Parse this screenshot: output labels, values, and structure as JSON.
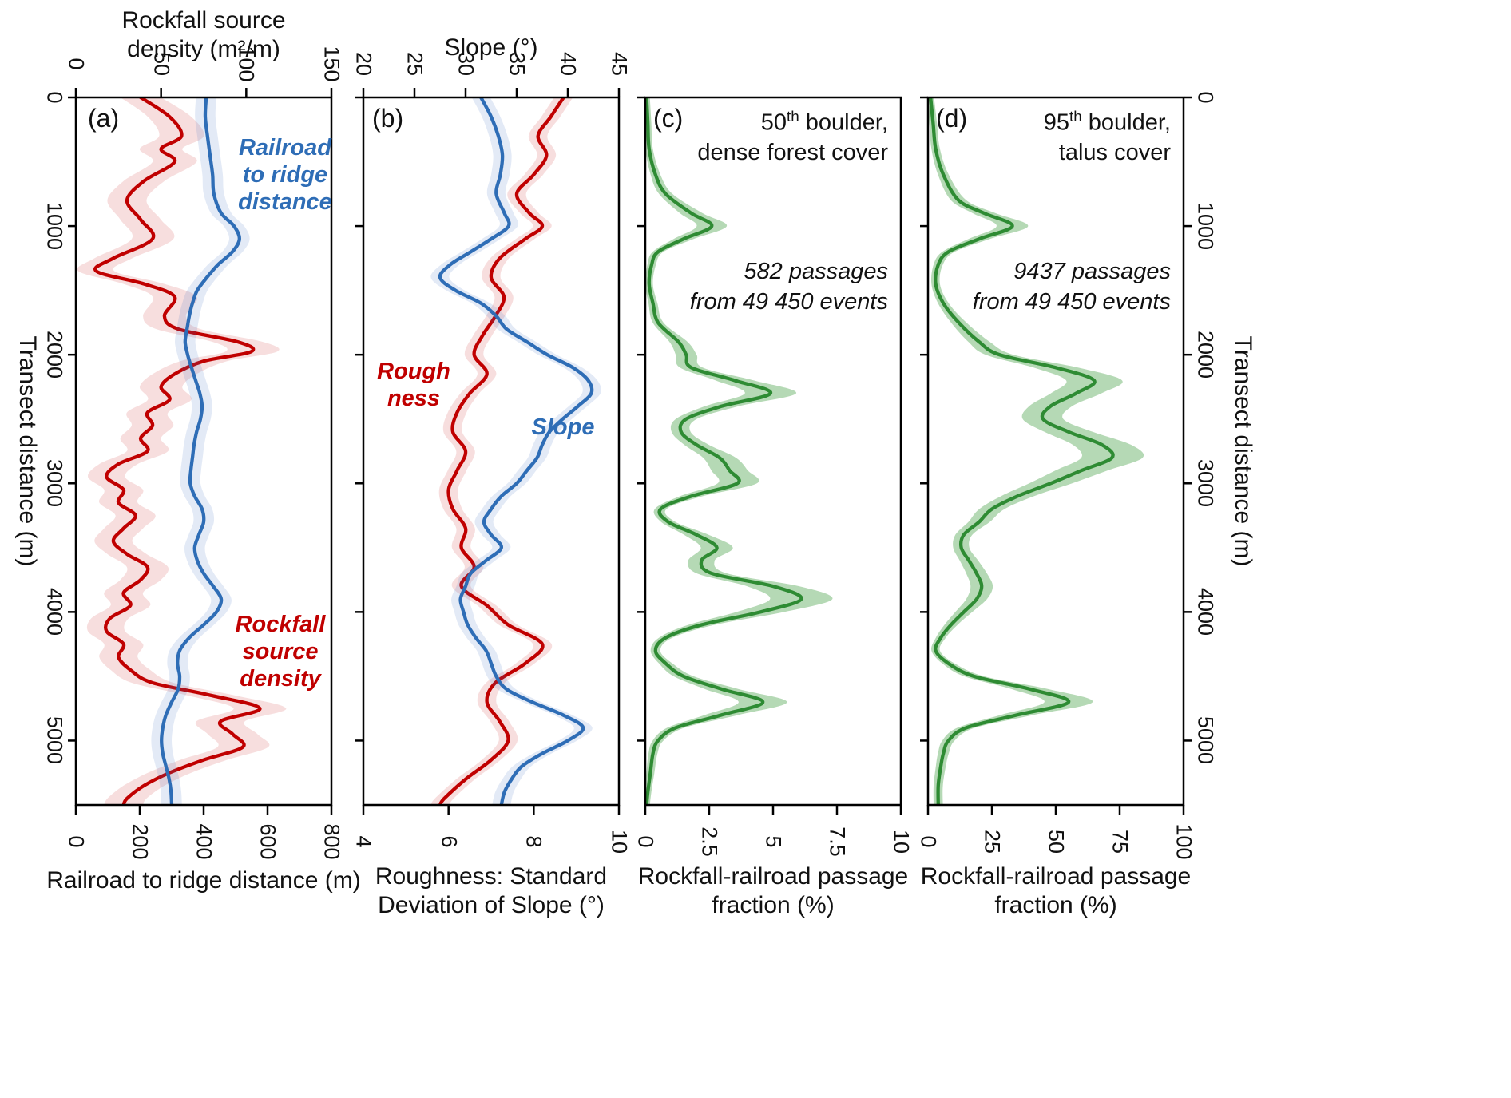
{
  "figure": {
    "transect_range": [
      0,
      5500
    ],
    "transect_ticks": [
      0,
      1000,
      2000,
      3000,
      4000,
      5000
    ]
  },
  "labels": {
    "left_axis_title": "Transect distance (m)",
    "right_axis_title": "Transect distance (m)",
    "panel_a": {
      "letter": "(a)",
      "top_title": "Rockfall source density (m²/m)",
      "bottom_title": "Railroad to ridge distance (m)",
      "annotation_blue": "Railroad to ridge distance",
      "annotation_red": "Rockfall source density"
    },
    "panel_b": {
      "letter": "(b)",
      "top_title": "Slope (°)",
      "bottom_title": "Roughness: Standard Deviation of Slope (°)",
      "annotation_red": "Rough ness",
      "annotation_blue": "Slope"
    },
    "panel_c": {
      "letter": "(c)",
      "header_num": "50",
      "header_sup": "th",
      "header_rest": " boulder,",
      "header_line2": "dense forest cover",
      "passages_line1": "582 passages",
      "passages_line2": "from 49 450 events",
      "bottom_title": "Rockfall-railroad passage fraction (%)"
    },
    "panel_d": {
      "letter": "(d)",
      "header_num": "95",
      "header_sup": "th",
      "header_rest": " boulder,",
      "header_line2": "talus cover",
      "passages_line1": "9437 passages",
      "passages_line2": "from 49 450 events",
      "bottom_title": "Rockfall-railroad passage fraction (%)"
    }
  },
  "chart_data": [
    {
      "panel": "a",
      "type": "line",
      "orientation": "vertical-transect",
      "y_axis": {
        "label": "Transect distance (m)",
        "ticks": [
          0,
          1000,
          2000,
          3000,
          4000,
          5000
        ],
        "range": [
          0,
          5500
        ]
      },
      "top_axis": {
        "label": "Rockfall source density (m²/m)",
        "ticks": [
          0,
          50,
          100,
          150
        ],
        "range": [
          0,
          150
        ]
      },
      "bottom_axis": {
        "label": "Railroad to ridge distance (m)",
        "ticks": [
          0,
          200,
          400,
          600,
          800
        ],
        "range": [
          0,
          800
        ]
      },
      "series": [
        {
          "name": "rockfall-source-density",
          "axis": "top",
          "color": "#c00000",
          "band_color": "rgba(192,0,0,0.13)",
          "band_abs": 10,
          "band_rel": 0.05,
          "t": [
            0,
            150,
            300,
            400,
            500,
            650,
            800,
            950,
            1100,
            1250,
            1350,
            1450,
            1550,
            1700,
            1800,
            1900,
            1975,
            2050,
            2150,
            2250,
            2350,
            2450,
            2550,
            2650,
            2750,
            2850,
            2950,
            3050,
            3150,
            3250,
            3350,
            3450,
            3550,
            3650,
            3750,
            3850,
            3950,
            4050,
            4150,
            4250,
            4350,
            4450,
            4550,
            4650,
            4750,
            4850,
            4950,
            5050,
            5150,
            5250,
            5350,
            5450,
            5500
          ],
          "v": [
            38,
            55,
            62,
            50,
            58,
            40,
            30,
            38,
            45,
            22,
            12,
            40,
            58,
            52,
            60,
            95,
            103,
            75,
            58,
            50,
            55,
            42,
            45,
            38,
            42,
            25,
            18,
            28,
            25,
            35,
            28,
            22,
            30,
            42,
            38,
            28,
            32,
            20,
            18,
            28,
            25,
            32,
            45,
            80,
            108,
            85,
            92,
            98,
            75,
            55,
            40,
            30,
            28
          ]
        },
        {
          "name": "railroad-to-ridge-distance",
          "axis": "bottom",
          "color": "#2e6db6",
          "band_color": "rgba(68,114,196,0.15)",
          "band_abs": 32,
          "band_rel": 0,
          "t": [
            0,
            150,
            300,
            450,
            600,
            750,
            900,
            1000,
            1100,
            1200,
            1300,
            1400,
            1500,
            1600,
            1700,
            1800,
            1900,
            2000,
            2100,
            2200,
            2300,
            2400,
            2500,
            2600,
            2700,
            2800,
            2900,
            3000,
            3100,
            3200,
            3300,
            3400,
            3500,
            3600,
            3700,
            3800,
            3900,
            4000,
            4100,
            4200,
            4300,
            4400,
            4500,
            4600,
            4700,
            4800,
            4900,
            5000,
            5100,
            5200,
            5300,
            5400,
            5500
          ],
          "v": [
            408,
            405,
            412,
            420,
            428,
            432,
            455,
            495,
            512,
            490,
            445,
            410,
            380,
            365,
            355,
            348,
            342,
            350,
            362,
            375,
            388,
            395,
            390,
            378,
            370,
            365,
            360,
            358,
            372,
            395,
            400,
            385,
            372,
            380,
            400,
            430,
            455,
            440,
            400,
            355,
            325,
            318,
            325,
            320,
            300,
            282,
            272,
            268,
            272,
            282,
            292,
            298,
            300
          ]
        }
      ]
    },
    {
      "panel": "b",
      "type": "line",
      "orientation": "vertical-transect",
      "y_axis": {
        "label": "Transect distance (m)",
        "ticks": [
          0,
          1000,
          2000,
          3000,
          4000,
          5000
        ],
        "range": [
          0,
          5500
        ]
      },
      "top_axis": {
        "label": "Slope (°)",
        "ticks": [
          20,
          25,
          30,
          35,
          40,
          45
        ],
        "range": [
          20,
          45
        ]
      },
      "bottom_axis": {
        "label": "Roughness: Standard Deviation of Slope (°)",
        "ticks": [
          4,
          6,
          8,
          10
        ],
        "range": [
          4,
          10
        ]
      },
      "series": [
        {
          "name": "roughness",
          "axis": "bottom",
          "color": "#c00000",
          "band_color": "rgba(192,0,0,0.13)",
          "band_abs": 0.22,
          "band_rel": 0,
          "t": [
            0,
            150,
            300,
            450,
            600,
            750,
            900,
            1000,
            1100,
            1250,
            1400,
            1550,
            1700,
            1850,
            2000,
            2150,
            2300,
            2450,
            2600,
            2750,
            2900,
            3050,
            3200,
            3350,
            3500,
            3650,
            3800,
            3950,
            4100,
            4250,
            4400,
            4550,
            4700,
            4850,
            5000,
            5150,
            5300,
            5450,
            5500
          ],
          "v": [
            8.7,
            8.4,
            8.1,
            8.3,
            8.0,
            7.6,
            7.9,
            8.2,
            7.8,
            7.2,
            7.0,
            7.3,
            7.1,
            6.8,
            6.6,
            6.9,
            6.5,
            6.2,
            6.1,
            6.4,
            6.2,
            6.0,
            6.1,
            6.4,
            6.3,
            6.6,
            6.3,
            6.9,
            7.4,
            8.2,
            7.8,
            7.1,
            6.9,
            7.2,
            7.4,
            7.0,
            6.4,
            5.9,
            5.8
          ]
        },
        {
          "name": "slope",
          "axis": "top",
          "color": "#2e6db6",
          "band_color": "rgba(68,114,196,0.15)",
          "band_abs": 0.9,
          "band_rel": 0,
          "t": [
            0,
            150,
            300,
            450,
            600,
            750,
            900,
            1000,
            1100,
            1200,
            1300,
            1400,
            1500,
            1600,
            1700,
            1800,
            1900,
            2000,
            2100,
            2200,
            2300,
            2400,
            2500,
            2600,
            2700,
            2800,
            2900,
            3000,
            3100,
            3200,
            3300,
            3400,
            3500,
            3600,
            3700,
            3800,
            3900,
            4000,
            4100,
            4200,
            4300,
            4400,
            4500,
            4600,
            4700,
            4800,
            4900,
            5000,
            5100,
            5200,
            5300,
            5400,
            5500
          ],
          "v": [
            31.5,
            32.5,
            33.2,
            33.6,
            33.4,
            33.0,
            33.8,
            34.2,
            32.5,
            30.5,
            28.5,
            27.5,
            29.0,
            31.5,
            33.0,
            34.0,
            36.0,
            38.0,
            40.5,
            42.0,
            42.3,
            41.0,
            39.5,
            38.2,
            37.5,
            37.0,
            36.0,
            35.0,
            33.5,
            32.5,
            31.8,
            32.5,
            33.5,
            32.0,
            30.5,
            30.0,
            29.5,
            29.8,
            30.2,
            31.0,
            32.0,
            32.5,
            33.0,
            34.0,
            36.5,
            39.5,
            41.5,
            40.0,
            37.5,
            35.5,
            34.5,
            33.8,
            33.5
          ]
        }
      ]
    },
    {
      "panel": "c",
      "type": "line",
      "orientation": "vertical-transect",
      "subtitle": "50th boulder, dense forest cover",
      "annotation": "582 passages from 49 450 events",
      "y_axis": {
        "label": "Transect distance (m)",
        "ticks": [
          0,
          1000,
          2000,
          3000,
          4000,
          5000
        ],
        "range": [
          0,
          5500
        ]
      },
      "bottom_axis": {
        "label": "Rockfall-railroad passage fraction (%)",
        "ticks": [
          0,
          2.5,
          5,
          7.5,
          10
        ],
        "range": [
          0,
          10
        ]
      },
      "series": [
        {
          "name": "passage-fraction-50th",
          "axis": "bottom",
          "color": "#2e8b33",
          "band_color": "rgba(70,160,70,0.4)",
          "band_abs": 0.12,
          "band_rel": 0.18,
          "t": [
            0,
            200,
            400,
            600,
            750,
            900,
            1000,
            1100,
            1200,
            1300,
            1450,
            1600,
            1750,
            1900,
            2000,
            2100,
            2200,
            2300,
            2400,
            2500,
            2600,
            2700,
            2800,
            2900,
            3000,
            3100,
            3200,
            3300,
            3400,
            3500,
            3600,
            3700,
            3800,
            3900,
            4000,
            4100,
            4200,
            4300,
            4400,
            4500,
            4600,
            4700,
            4800,
            4900,
            5000,
            5100,
            5250,
            5400,
            5500
          ],
          "v": [
            0.05,
            0.1,
            0.15,
            0.4,
            0.8,
            1.8,
            2.6,
            1.5,
            0.5,
            0.25,
            0.15,
            0.3,
            0.5,
            1.3,
            1.6,
            1.8,
            3.5,
            4.9,
            3.0,
            1.6,
            1.4,
            2.0,
            2.9,
            3.3,
            3.6,
            1.8,
            0.6,
            0.9,
            2.0,
            2.8,
            2.2,
            2.6,
            5.0,
            6.1,
            4.5,
            2.2,
            0.8,
            0.4,
            0.8,
            1.5,
            3.0,
            4.6,
            3.0,
            1.2,
            0.5,
            0.3,
            0.2,
            0.1,
            0.05
          ]
        }
      ]
    },
    {
      "panel": "d",
      "type": "line",
      "orientation": "vertical-transect",
      "subtitle": "95th boulder, talus cover",
      "annotation": "9437 passages from 49 450 events",
      "y_axis": {
        "label": "Transect distance (m)",
        "ticks": [
          0,
          1000,
          2000,
          3000,
          4000,
          5000
        ],
        "range": [
          0,
          5500
        ]
      },
      "bottom_axis": {
        "label": "Rockfall-railroad passage fraction (%)",
        "ticks": [
          0,
          25,
          50,
          75,
          100
        ],
        "range": [
          0,
          100
        ]
      },
      "series": [
        {
          "name": "passage-fraction-95th",
          "axis": "bottom",
          "color": "#2e8b33",
          "band_color": "rgba(70,160,70,0.4)",
          "band_abs": 1.2,
          "band_rel": 0.15,
          "t": [
            0,
            200,
            400,
            600,
            800,
            900,
            1000,
            1100,
            1200,
            1300,
            1450,
            1600,
            1750,
            1900,
            2000,
            2100,
            2200,
            2300,
            2400,
            2500,
            2600,
            2700,
            2800,
            2900,
            3000,
            3100,
            3200,
            3300,
            3400,
            3500,
            3600,
            3700,
            3800,
            3900,
            4000,
            4100,
            4200,
            4300,
            4400,
            4500,
            4600,
            4700,
            4800,
            4900,
            5000,
            5100,
            5200,
            5350,
            5500
          ],
          "v": [
            1,
            2,
            3,
            6,
            12,
            22,
            33,
            20,
            8,
            4,
            3,
            6,
            12,
            20,
            28,
            50,
            65,
            58,
            48,
            45,
            55,
            68,
            72,
            60,
            48,
            35,
            25,
            20,
            14,
            13,
            16,
            19,
            21,
            19,
            14,
            9,
            5,
            3,
            8,
            18,
            40,
            55,
            35,
            15,
            8,
            6,
            5,
            4,
            4
          ]
        }
      ]
    }
  ]
}
